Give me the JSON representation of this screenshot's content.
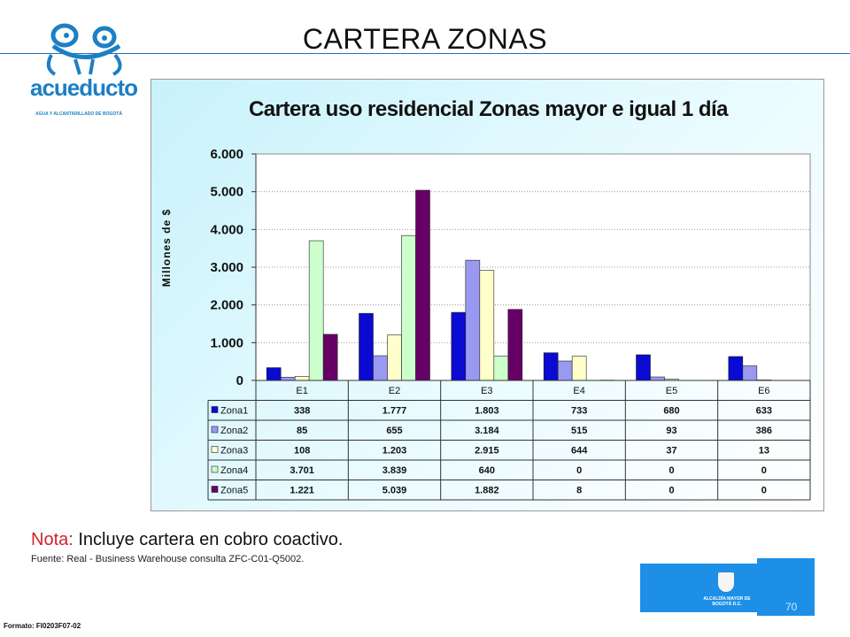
{
  "slide": {
    "title": "CARTERA ZONAS",
    "logo_text": "acueducto",
    "logo_sub": "AGUA Y ALCANTARILLADO DE BOGOTÁ",
    "note_key": "Nota:",
    "note_text": " Incluye cartera en cobro coactivo.",
    "source": "Fuente: Real - Business Warehouse consulta ZFC-C01-Q5002.",
    "formato": "Formato: FI0203F07-02",
    "alcaldia": "ALCALDÍA MAYOR DE BOGOTÁ D.C.",
    "page_number": "70"
  },
  "chart_data": {
    "type": "bar",
    "title": "Cartera uso residencial Zonas mayor e igual 1 día",
    "ylabel": "Millones de $",
    "xlabel": "",
    "ylim": [
      0,
      6000
    ],
    "yticks": [
      0,
      1000,
      2000,
      3000,
      4000,
      5000,
      6000
    ],
    "ytick_labels": [
      "0",
      "1.000",
      "2.000",
      "3.000",
      "4.000",
      "5.000",
      "6.000"
    ],
    "categories": [
      "E1",
      "E2",
      "E3",
      "E4",
      "E5",
      "E6"
    ],
    "grid": true,
    "legend": "data-table",
    "series": [
      {
        "name": "Zona1",
        "color": "#0a0ad2",
        "values": [
          338,
          1777,
          1803,
          733,
          680,
          633
        ],
        "labels": [
          "338",
          "1.777",
          "1.803",
          "733",
          "680",
          "633"
        ]
      },
      {
        "name": "Zona2",
        "color": "#9999f2",
        "values": [
          85,
          655,
          3184,
          515,
          93,
          386
        ],
        "labels": [
          "85",
          "655",
          "3.184",
          "515",
          "93",
          "386"
        ]
      },
      {
        "name": "Zona3",
        "color": "#ffffcc",
        "values": [
          108,
          1203,
          2915,
          644,
          37,
          13
        ],
        "labels": [
          "108",
          "1.203",
          "2.915",
          "644",
          "37",
          "13"
        ]
      },
      {
        "name": "Zona4",
        "color": "#ccffcc",
        "values": [
          3701,
          3839,
          640,
          0,
          0,
          0
        ],
        "labels": [
          "3.701",
          "3.839",
          "640",
          "0",
          "0",
          "0"
        ]
      },
      {
        "name": "Zona5",
        "color": "#660066",
        "values": [
          1221,
          5039,
          1882,
          8,
          0,
          0
        ],
        "labels": [
          "1.221",
          "5.039",
          "1.882",
          "8",
          "0",
          "0"
        ]
      }
    ]
  }
}
